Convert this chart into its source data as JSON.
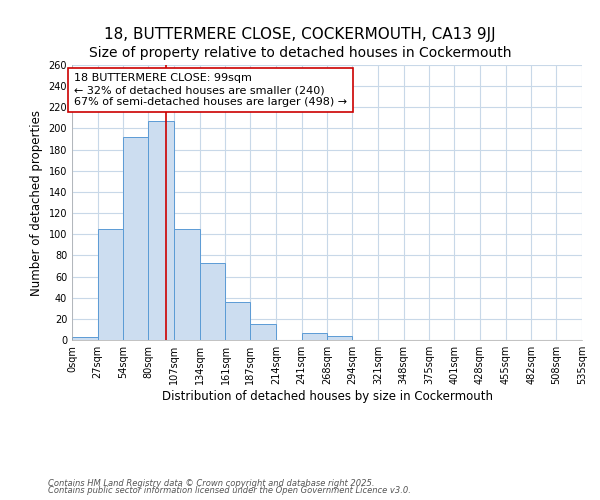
{
  "title": "18, BUTTERMERE CLOSE, COCKERMOUTH, CA13 9JJ",
  "subtitle": "Size of property relative to detached houses in Cockermouth",
  "xlabel": "Distribution of detached houses by size in Cockermouth",
  "ylabel": "Number of detached properties",
  "bar_edges": [
    0,
    27,
    54,
    80,
    107,
    134,
    161,
    187,
    214,
    241,
    268,
    294,
    321,
    348,
    375,
    401,
    428,
    455,
    482,
    508,
    535
  ],
  "bar_heights": [
    3,
    105,
    192,
    207,
    105,
    73,
    36,
    15,
    0,
    7,
    4,
    0,
    0,
    0,
    0,
    0,
    0,
    0,
    0,
    0
  ],
  "tick_labels": [
    "0sqm",
    "27sqm",
    "54sqm",
    "80sqm",
    "107sqm",
    "134sqm",
    "161sqm",
    "187sqm",
    "214sqm",
    "241sqm",
    "268sqm",
    "294sqm",
    "321sqm",
    "348sqm",
    "375sqm",
    "401sqm",
    "428sqm",
    "455sqm",
    "482sqm",
    "508sqm",
    "535sqm"
  ],
  "bar_color": "#ccddf0",
  "bar_edge_color": "#5b9bd5",
  "vline_x": 99,
  "vline_color": "#cc0000",
  "annotation_line1": "18 BUTTERMERE CLOSE: 99sqm",
  "annotation_line2": "← 32% of detached houses are smaller (240)",
  "annotation_line3": "67% of semi-detached houses are larger (498) →",
  "ylim": [
    0,
    260
  ],
  "yticks": [
    0,
    20,
    40,
    60,
    80,
    100,
    120,
    140,
    160,
    180,
    200,
    220,
    240,
    260
  ],
  "background_color": "#ffffff",
  "grid_color": "#c8d8e8",
  "footer_line1": "Contains HM Land Registry data © Crown copyright and database right 2025.",
  "footer_line2": "Contains public sector information licensed under the Open Government Licence v3.0.",
  "title_fontsize": 11,
  "axis_label_fontsize": 8.5,
  "tick_fontsize": 7,
  "annotation_fontsize": 8,
  "footer_fontsize": 6
}
